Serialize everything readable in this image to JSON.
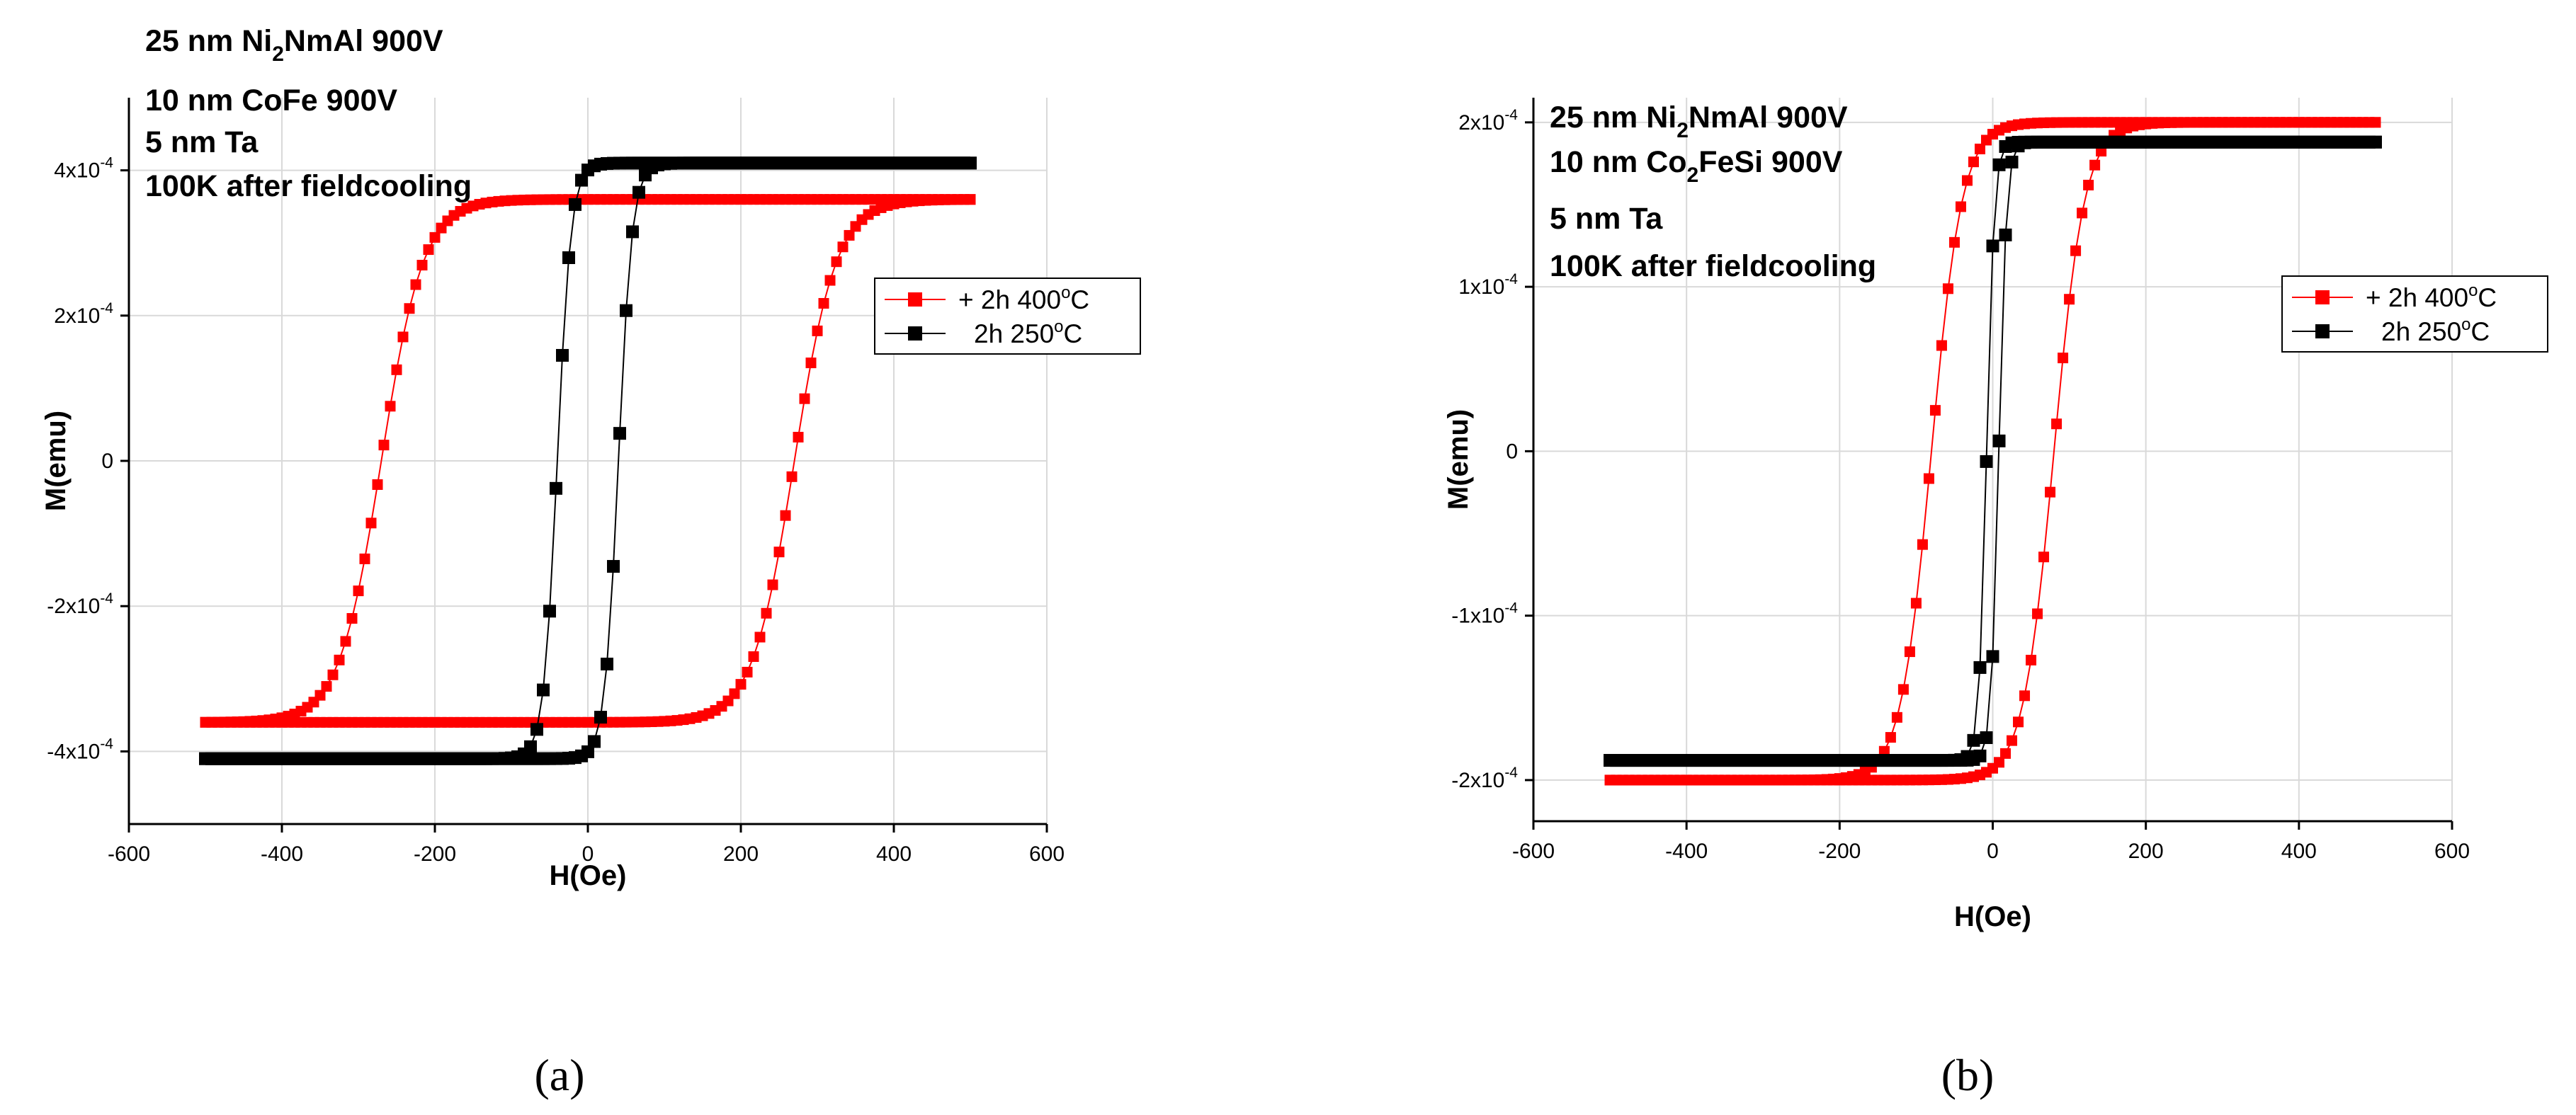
{
  "chart_data": [
    {
      "type": "line",
      "panel_label": "a",
      "caption": "(a)",
      "xlabel": "H(Oe)",
      "ylabel": "M(emu)",
      "xlim": [
        -600,
        600
      ],
      "ylim": [
        -0.0005,
        0.0005
      ],
      "x_ticks": [
        "-600",
        "-400",
        "-200",
        "0",
        "200",
        "400",
        "600"
      ],
      "y_ticks": [
        {
          "value": -0.0004,
          "label": "-4x10",
          "exp": "-4"
        },
        {
          "value": -0.0002,
          "label": "-2x10",
          "exp": "-4"
        },
        {
          "value": 0,
          "label": "0",
          "exp": ""
        },
        {
          "value": 0.0002,
          "label": "2x10",
          "exp": "-4"
        },
        {
          "value": 0.0004,
          "label": "4x10",
          "exp": "-4"
        }
      ],
      "annotations": [
        {
          "text": "25 nm Ni",
          "sub": "2",
          "after": "NmAl 900V"
        },
        {
          "text": "10 nm CoFe 900V",
          "sub": "",
          "after": ""
        },
        {
          "text": " 5 nm Ta",
          "sub": "",
          "after": ""
        },
        {
          "text": "100K after fieldcooling",
          "sub": "",
          "after": ""
        }
      ],
      "series": [
        {
          "name": "+ 2h 400",
          "deg": "o",
          "unit": "C",
          "color": "#ff0000",
          "hysteresis": {
            "Hc": 270,
            "Ms": 0.00036,
            "width": 55,
            "dense": true
          }
        },
        {
          "name": "2h 250",
          "deg": "o",
          "unit": "C",
          "color": "#000000",
          "hysteresis": {
            "Hc": 40,
            "Ms": 0.00041,
            "width": 18,
            "dense": false
          }
        }
      ]
    },
    {
      "type": "line",
      "panel_label": "b",
      "caption": "(b)",
      "xlabel": "H(Oe)",
      "ylabel": "M(emu)",
      "xlim": [
        -600,
        600
      ],
      "ylim": [
        -0.000225,
        0.000215
      ],
      "x_ticks": [
        "-600",
        "-400",
        "-200",
        "0",
        "200",
        "400",
        "600"
      ],
      "y_ticks": [
        {
          "value": -0.0002,
          "label": "-2x10",
          "exp": "-4"
        },
        {
          "value": -0.0001,
          "label": "-1x10",
          "exp": "-4"
        },
        {
          "value": 0,
          "label": "0",
          "exp": ""
        },
        {
          "value": 0.0001,
          "label": "1x10",
          "exp": "-4"
        },
        {
          "value": 0.0002,
          "label": "2x10",
          "exp": "-4"
        }
      ],
      "annotations": [
        {
          "text": "25 nm Ni",
          "sub": "2",
          "after": "NmAl 900V"
        },
        {
          "text": "10 nm Co",
          "sub": "2",
          "after": "FeSi 900V"
        },
        {
          "text": " 5 nm Ta",
          "sub": "",
          "after": ""
        },
        {
          "text": "100K after fieldcooling",
          "sub": "",
          "after": ""
        }
      ],
      "series": [
        {
          "name": "+ 2h 400",
          "deg": "o",
          "unit": "C",
          "color": "#ff0000",
          "hysteresis": {
            "Hc": 80,
            "Ms": 0.0002,
            "width": 40,
            "dense": true
          }
        },
        {
          "name": "2h 250",
          "deg": "o",
          "unit": "C",
          "color": "#000000",
          "hysteresis": {
            "Hc": 8,
            "Ms": 0.000188,
            "width": 10,
            "dense": false
          }
        }
      ]
    }
  ]
}
